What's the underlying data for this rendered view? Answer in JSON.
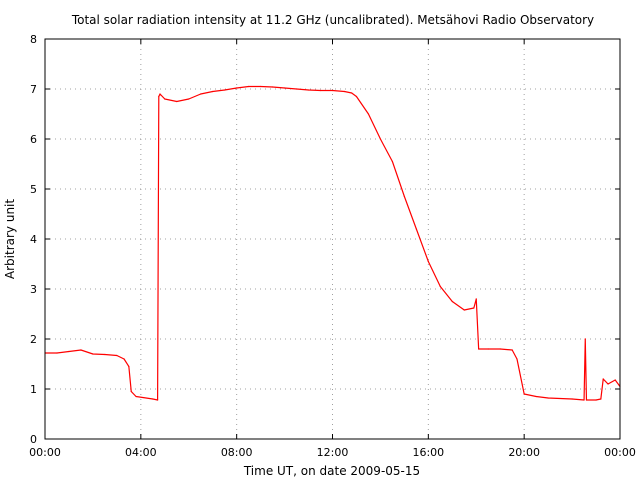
{
  "chart_data": {
    "type": "line",
    "title": "Total solar radiation intensity at 11.2 GHz (uncalibrated). Metsähovi Radio Observatory",
    "xlabel": "Time UT, on date 2009-05-15",
    "ylabel": "Arbitrary unit",
    "xlim": [
      0,
      24
    ],
    "ylim": [
      0,
      8
    ],
    "grid": true,
    "x_ticks": [
      {
        "value": 0,
        "label": "00:00"
      },
      {
        "value": 4,
        "label": "04:00"
      },
      {
        "value": 8,
        "label": "08:00"
      },
      {
        "value": 12,
        "label": "12:00"
      },
      {
        "value": 16,
        "label": "16:00"
      },
      {
        "value": 20,
        "label": "20:00"
      },
      {
        "value": 24,
        "label": "00:00"
      }
    ],
    "y_ticks": [
      {
        "value": 0,
        "label": "0"
      },
      {
        "value": 1,
        "label": "1"
      },
      {
        "value": 2,
        "label": "2"
      },
      {
        "value": 3,
        "label": "3"
      },
      {
        "value": 4,
        "label": "4"
      },
      {
        "value": 5,
        "label": "5"
      },
      {
        "value": 6,
        "label": "6"
      },
      {
        "value": 7,
        "label": "7"
      },
      {
        "value": 8,
        "label": "8"
      }
    ],
    "series": [
      {
        "color": "#ff0000",
        "x": [
          0.0,
          0.5,
          1.0,
          1.5,
          2.0,
          2.5,
          3.0,
          3.3,
          3.5,
          3.6,
          3.8,
          4.5,
          4.7,
          4.75,
          4.8,
          5.0,
          5.5,
          6.0,
          6.5,
          7.0,
          7.5,
          8.0,
          8.5,
          9.0,
          9.5,
          10.0,
          10.5,
          11.0,
          11.5,
          12.0,
          12.5,
          12.8,
          13.0,
          13.5,
          14.0,
          14.5,
          15.0,
          15.5,
          16.0,
          16.5,
          17.0,
          17.5,
          17.9,
          18.0,
          18.1,
          18.5,
          19.0,
          19.5,
          19.7,
          20.0,
          20.5,
          21.0,
          22.0,
          22.5,
          22.55,
          22.6,
          23.0,
          23.2,
          23.3,
          23.5,
          23.8,
          24.0
        ],
        "y": [
          1.72,
          1.72,
          1.75,
          1.78,
          1.7,
          1.69,
          1.67,
          1.6,
          1.45,
          0.95,
          0.85,
          0.8,
          0.78,
          6.85,
          6.9,
          6.8,
          6.75,
          6.8,
          6.9,
          6.95,
          6.98,
          7.02,
          7.05,
          7.05,
          7.04,
          7.02,
          7.0,
          6.98,
          6.97,
          6.97,
          6.95,
          6.92,
          6.85,
          6.5,
          6.0,
          5.55,
          4.85,
          4.2,
          3.55,
          3.05,
          2.75,
          2.58,
          2.62,
          2.8,
          1.8,
          1.8,
          1.8,
          1.78,
          1.6,
          0.9,
          0.85,
          0.82,
          0.8,
          0.78,
          2.0,
          0.78,
          0.78,
          0.8,
          1.2,
          1.1,
          1.18,
          1.05
        ]
      }
    ]
  }
}
